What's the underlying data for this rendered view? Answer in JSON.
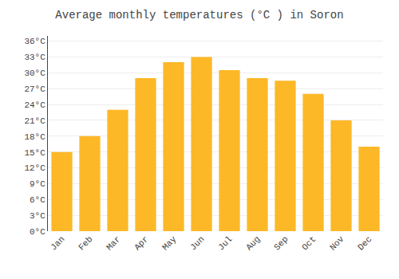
{
  "chart_data": {
    "type": "bar",
    "title": "Average monthly temperatures (°C ) in Soron",
    "categories": [
      "Jan",
      "Feb",
      "Mar",
      "Apr",
      "May",
      "Jun",
      "Jul",
      "Aug",
      "Sep",
      "Oct",
      "Nov",
      "Dec"
    ],
    "values": [
      15,
      18,
      23,
      29,
      32,
      33,
      30.5,
      29,
      28.5,
      26,
      21,
      16
    ],
    "color": "#FDB827",
    "ylim": [
      0,
      37
    ],
    "yticks": [
      {
        "value": 0,
        "label": "0°C"
      },
      {
        "value": 3,
        "label": "3°C"
      },
      {
        "value": 6,
        "label": "6°C"
      },
      {
        "value": 9,
        "label": "9°C"
      },
      {
        "value": 12,
        "label": "12°C"
      },
      {
        "value": 15,
        "label": "15°C"
      },
      {
        "value": 18,
        "label": "18°C"
      },
      {
        "value": 21,
        "label": "21°C"
      },
      {
        "value": 24,
        "label": "24°C"
      },
      {
        "value": 27,
        "label": "27°C"
      },
      {
        "value": 30,
        "label": "30°C"
      },
      {
        "value": 33,
        "label": "33°C"
      },
      {
        "value": 36,
        "label": "36°C"
      }
    ],
    "grid": true
  }
}
